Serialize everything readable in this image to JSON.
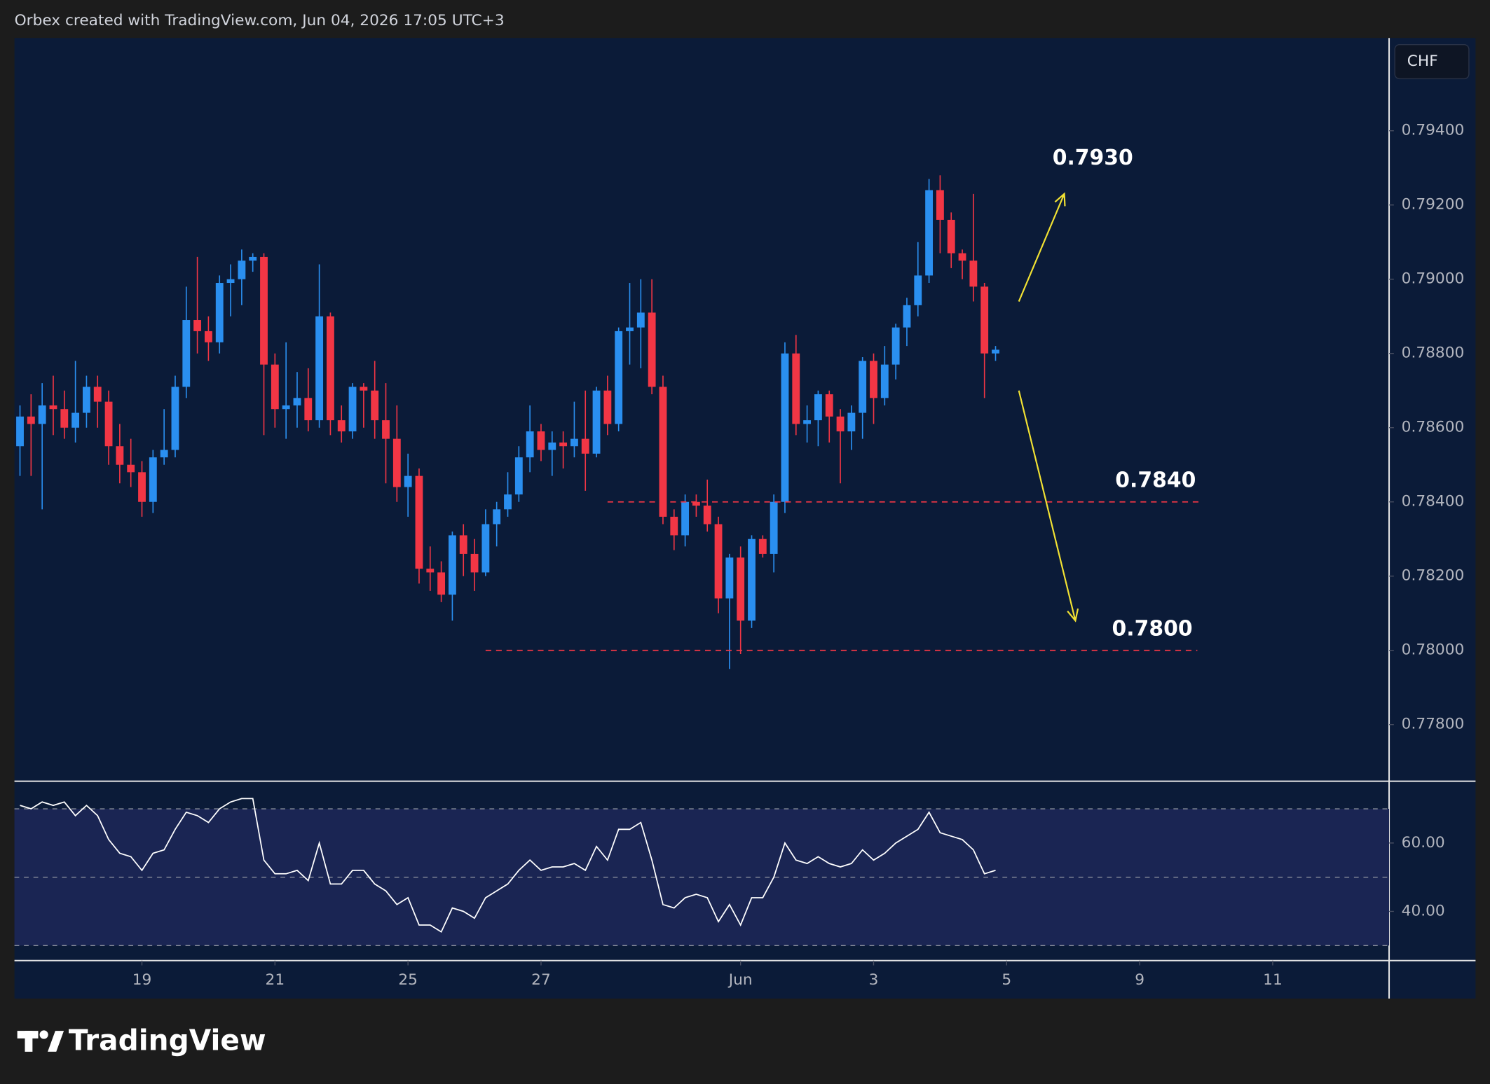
{
  "header": "Orbex created with TradingView.com, Jun 04, 2026 17:05 UTC+3",
  "logo": "TradingView",
  "chart_data": [
    {
      "type": "candlestick",
      "currency": "CHF",
      "up_color": "#2a8ff0",
      "down_color": "#f23645",
      "line_color": "#f23645",
      "arrow_color": "#f2e233",
      "x": [
        0,
        1,
        2,
        3,
        4,
        5,
        6,
        7,
        8,
        9,
        10,
        11,
        12,
        13,
        14,
        15,
        16,
        17,
        18,
        19,
        20,
        21,
        22,
        23,
        24,
        25,
        26,
        27,
        28,
        29,
        30,
        31,
        32,
        33,
        34,
        35,
        36,
        37,
        38,
        39,
        40,
        41,
        42,
        43,
        44,
        45,
        46,
        47,
        48,
        49,
        50,
        51,
        52,
        53,
        54,
        55,
        56,
        57,
        58,
        59,
        60,
        61,
        62,
        63,
        64,
        65,
        66,
        67,
        68,
        69,
        70,
        71,
        72,
        73,
        74,
        75,
        76,
        77,
        78,
        79,
        80,
        81,
        82,
        83,
        84,
        85,
        86,
        87,
        88
      ],
      "open": [
        0.7855,
        0.7863,
        0.7861,
        0.7866,
        0.7865,
        0.786,
        0.7864,
        0.7871,
        0.7867,
        0.7855,
        0.785,
        0.7848,
        0.784,
        0.7852,
        0.7854,
        0.7871,
        0.7889,
        0.7886,
        0.7883,
        0.7899,
        0.79,
        0.7905,
        0.7906,
        0.7877,
        0.7865,
        0.7866,
        0.7868,
        0.7862,
        0.789,
        0.7862,
        0.7859,
        0.7871,
        0.787,
        0.7862,
        0.7857,
        0.7844,
        0.7847,
        0.7822,
        0.7821,
        0.7815,
        0.7831,
        0.7826,
        0.7821,
        0.7834,
        0.7838,
        0.7842,
        0.7852,
        0.7859,
        0.7854,
        0.7856,
        0.7855,
        0.7857,
        0.7853,
        0.787,
        0.7861,
        0.7886,
        0.7887,
        0.7891,
        0.7871,
        0.7836,
        0.7831,
        0.784,
        0.7839,
        0.7834,
        0.7814,
        0.7825,
        0.7808,
        0.783,
        0.7826,
        0.784,
        0.788,
        0.7861,
        0.7862,
        0.7869,
        0.7863,
        0.7859,
        0.7864,
        0.7878,
        0.7868,
        0.7877,
        0.7887,
        0.7893,
        0.7901,
        0.7924,
        0.7916,
        0.7907,
        0.7905,
        0.7898,
        0.788
      ],
      "high": [
        0.7866,
        0.7869,
        0.7872,
        0.7874,
        0.787,
        0.7878,
        0.7874,
        0.7874,
        0.787,
        0.7861,
        0.7857,
        0.7851,
        0.7854,
        0.7865,
        0.7874,
        0.7898,
        0.7906,
        0.789,
        0.7901,
        0.7904,
        0.7908,
        0.7907,
        0.7907,
        0.788,
        0.7883,
        0.7875,
        0.7876,
        0.7904,
        0.7891,
        0.7866,
        0.7872,
        0.7872,
        0.7878,
        0.7872,
        0.7866,
        0.7853,
        0.7849,
        0.7828,
        0.7824,
        0.7832,
        0.7834,
        0.783,
        0.7838,
        0.784,
        0.7848,
        0.7855,
        0.7866,
        0.7861,
        0.7859,
        0.7859,
        0.7867,
        0.787,
        0.7871,
        0.7874,
        0.7887,
        0.7899,
        0.79,
        0.79,
        0.7874,
        0.7838,
        0.7842,
        0.7842,
        0.7846,
        0.7836,
        0.7826,
        0.7828,
        0.7831,
        0.7831,
        0.7842,
        0.7883,
        0.7885,
        0.7866,
        0.787,
        0.787,
        0.7865,
        0.7866,
        0.7879,
        0.788,
        0.7882,
        0.7888,
        0.7895,
        0.791,
        0.7927,
        0.7928,
        0.7918,
        0.7908,
        0.7923,
        0.7899,
        0.7882
      ],
      "low": [
        0.7847,
        0.7847,
        0.7838,
        0.7858,
        0.7857,
        0.7856,
        0.786,
        0.786,
        0.785,
        0.7845,
        0.7844,
        0.7836,
        0.7837,
        0.785,
        0.7852,
        0.7868,
        0.788,
        0.7878,
        0.788,
        0.789,
        0.7893,
        0.7902,
        0.7858,
        0.786,
        0.7857,
        0.786,
        0.7859,
        0.786,
        0.7858,
        0.7856,
        0.7857,
        0.786,
        0.7857,
        0.7845,
        0.784,
        0.7836,
        0.7818,
        0.7816,
        0.7813,
        0.7808,
        0.782,
        0.7816,
        0.782,
        0.7828,
        0.7836,
        0.784,
        0.7848,
        0.7851,
        0.7847,
        0.7849,
        0.7852,
        0.7843,
        0.7852,
        0.7858,
        0.7859,
        0.7877,
        0.7876,
        0.7869,
        0.7834,
        0.7827,
        0.7828,
        0.7836,
        0.7832,
        0.781,
        0.7795,
        0.7799,
        0.7806,
        0.7825,
        0.7821,
        0.7837,
        0.7858,
        0.7856,
        0.7855,
        0.7856,
        0.7845,
        0.7854,
        0.7857,
        0.7861,
        0.7866,
        0.7873,
        0.7882,
        0.789,
        0.7899,
        0.7907,
        0.7903,
        0.79,
        0.7894,
        0.7868,
        0.7878
      ],
      "close": [
        0.7863,
        0.7861,
        0.7866,
        0.7865,
        0.786,
        0.7864,
        0.7871,
        0.7867,
        0.7855,
        0.785,
        0.7848,
        0.784,
        0.7852,
        0.7854,
        0.7871,
        0.7889,
        0.7886,
        0.7883,
        0.7899,
        0.79,
        0.7905,
        0.7906,
        0.7877,
        0.7865,
        0.7866,
        0.7868,
        0.7862,
        0.789,
        0.7862,
        0.7859,
        0.7871,
        0.787,
        0.7862,
        0.7857,
        0.7844,
        0.7847,
        0.7822,
        0.7821,
        0.7815,
        0.7831,
        0.7826,
        0.7821,
        0.7834,
        0.7838,
        0.7842,
        0.7852,
        0.7859,
        0.7854,
        0.7856,
        0.7855,
        0.7857,
        0.7853,
        0.787,
        0.7861,
        0.7886,
        0.7887,
        0.7891,
        0.7871,
        0.7836,
        0.7831,
        0.784,
        0.7839,
        0.7834,
        0.7814,
        0.7825,
        0.7808,
        0.783,
        0.7826,
        0.784,
        0.788,
        0.7861,
        0.7862,
        0.7869,
        0.7863,
        0.7859,
        0.7864,
        0.7878,
        0.7868,
        0.7877,
        0.7887,
        0.7893,
        0.7901,
        0.7924,
        0.7916,
        0.7907,
        0.7905,
        0.7898,
        0.788,
        0.7881
      ],
      "xlim": [
        -0.5,
        123.5
      ],
      "xticks": [
        {
          "value": 11,
          "label": "19"
        },
        {
          "value": 23,
          "label": "21"
        },
        {
          "value": 35,
          "label": "25"
        },
        {
          "value": 47,
          "label": "27"
        },
        {
          "value": 65,
          "label": "Jun"
        },
        {
          "value": 77,
          "label": "3"
        },
        {
          "value": 89,
          "label": "5"
        },
        {
          "value": 101,
          "label": "9"
        },
        {
          "value": 113,
          "label": "11"
        }
      ],
      "ylim": [
        0.7765,
        0.7965
      ],
      "yticks": [
        {
          "value": 0.778,
          "label": "0.77800"
        },
        {
          "value": 0.78,
          "label": "0.78000"
        },
        {
          "value": 0.782,
          "label": "0.78200"
        },
        {
          "value": 0.784,
          "label": "0.78400"
        },
        {
          "value": 0.786,
          "label": "0.78600"
        },
        {
          "value": 0.788,
          "label": "0.78800"
        },
        {
          "value": 0.79,
          "label": "0.79000"
        },
        {
          "value": 0.792,
          "label": "0.79200"
        },
        {
          "value": 0.794,
          "label": "0.79400"
        }
      ],
      "price_lines": [
        {
          "value": 0.784,
          "label": "0.7840",
          "xrange": [
            53,
            106.5
          ]
        },
        {
          "value": 0.78,
          "label": "0.7800",
          "xrange": [
            42,
            106.2
          ]
        }
      ],
      "arrows": [
        {
          "label": "0.7930",
          "x": [
            90.1,
            94.2
          ],
          "y": [
            0.7894,
            0.7923
          ]
        },
        {
          "x": [
            90.1,
            95.2
          ],
          "y": [
            0.787,
            0.7808
          ]
        }
      ]
    },
    {
      "type": "line",
      "color": "#ffffff",
      "band_color": "#1a2553",
      "level_color": "#8a8f9c",
      "values": [
        71,
        70,
        72,
        71,
        72,
        68,
        71,
        68,
        61,
        57,
        56,
        52,
        57,
        58,
        64,
        69,
        68,
        66,
        70,
        72,
        73,
        73,
        55,
        51,
        51,
        52,
        49,
        60,
        48,
        48,
        52,
        52,
        48,
        46,
        42,
        44,
        36,
        36,
        34,
        41,
        40,
        38,
        44,
        46,
        48,
        52,
        55,
        52,
        53,
        53,
        54,
        52,
        59,
        55,
        64,
        64,
        66,
        55,
        42,
        41,
        44,
        45,
        44,
        37,
        42,
        36,
        44,
        44,
        50,
        60,
        55,
        54,
        56,
        54,
        53,
        54,
        58,
        55,
        57,
        60,
        62,
        64,
        69,
        63,
        62,
        61,
        58,
        51,
        52
      ],
      "ylim": [
        25.6,
        77.8
      ],
      "yticks": [
        {
          "value": 40,
          "label": "40.00"
        },
        {
          "value": 60,
          "label": "60.00"
        }
      ],
      "levels": [
        30,
        50,
        70
      ],
      "band": [
        30,
        70
      ]
    }
  ]
}
